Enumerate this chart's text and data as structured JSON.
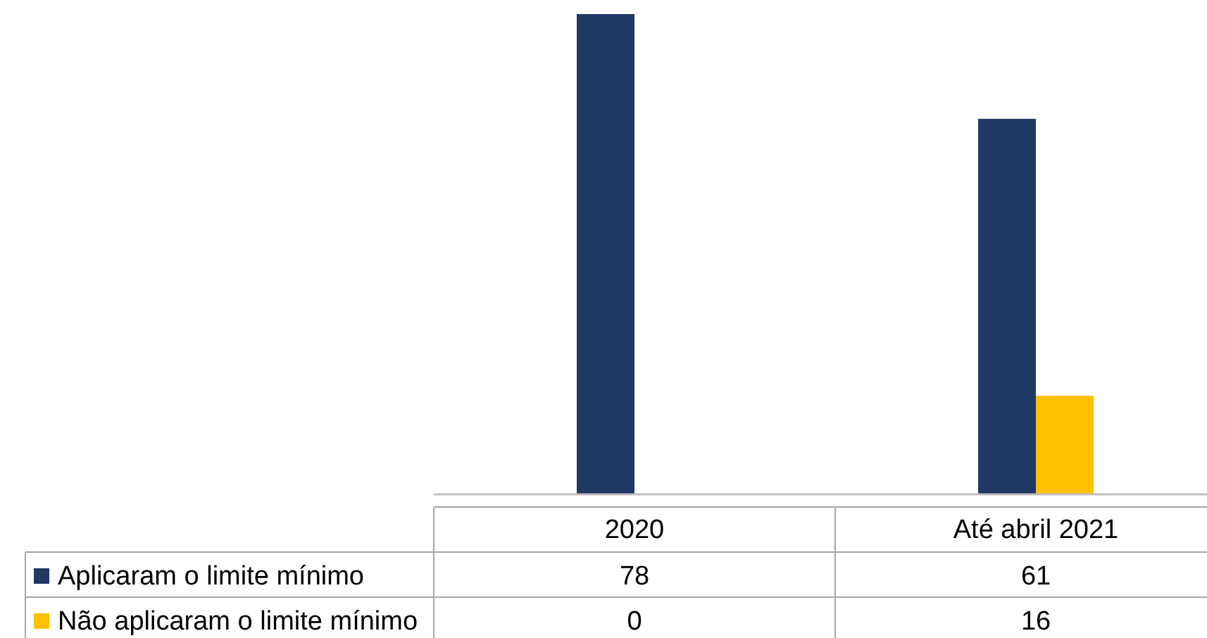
{
  "chart_data": {
    "type": "bar",
    "categories": [
      "2020",
      "Até abril 2021"
    ],
    "series": [
      {
        "name": "Aplicaram o limite mínimo",
        "color": "#203864",
        "values": [
          78,
          61
        ]
      },
      {
        "name": "Não aplicaram o limite mínimo",
        "color": "#ffc000",
        "values": [
          0,
          16
        ]
      }
    ],
    "data_labels": true,
    "legend": "bottom left"
  }
}
